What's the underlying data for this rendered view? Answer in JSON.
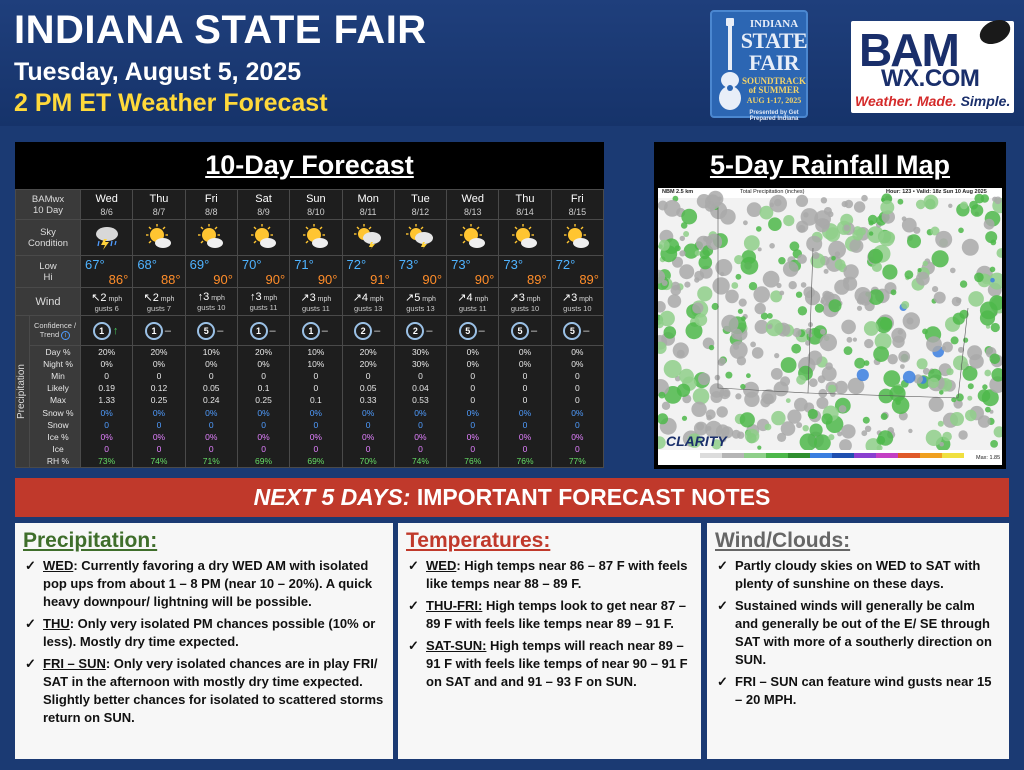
{
  "header": {
    "title": "INDIANA STATE FAIR",
    "date": "Tuesday, August 5, 2025",
    "forecast": "2 PM ET Weather Forecast"
  },
  "fair_logo": {
    "line1": "INDIANA",
    "line2": "STATE FAIR",
    "line3": "SOUNDTRACK of SUMMER",
    "line4": "AUG 1-17, 2025",
    "line5": "Presented by Get Prepared Indiana"
  },
  "bam_logo": {
    "brand": "BAM",
    "domain": "WX.COM",
    "tagline_red": "Weather. Made.",
    "tagline_blue": "Simple."
  },
  "forecast_panel": {
    "title": "10-Day Forecast",
    "corner_line1": "BAMwx",
    "corner_line2": "10 Day",
    "sky_label1": "Sky",
    "sky_label2": "Condition",
    "low_label": "Low",
    "hi_label": "Hi",
    "wind_label": "Wind",
    "conf_label1": "Confidence /",
    "conf_label2": "Trend",
    "precip_side": "Precipitation",
    "precip_rows": [
      "Day %",
      "Night %",
      "Min",
      "Likely",
      "Max",
      "Snow %",
      "Snow",
      "Ice %",
      "Ice",
      "RH %"
    ],
    "days": [
      {
        "name": "Wed",
        "date": "8/6",
        "sky": "storm",
        "low": "67°",
        "hi": "86°",
        "wind_dir": "↖",
        "wind": "2",
        "gusts": "gusts 6",
        "conf": "1",
        "trend": "↑",
        "day": "20%",
        "night": "0%",
        "min": "0",
        "likely": "0.19",
        "max": "1.33",
        "snowp": "0%",
        "snow": "0",
        "icep": "0%",
        "ice": "0",
        "rh": "73%"
      },
      {
        "name": "Thu",
        "date": "8/7",
        "sky": "sun",
        "low": "68°",
        "hi": "88°",
        "wind_dir": "↖",
        "wind": "2",
        "gusts": "gusts 7",
        "conf": "1",
        "trend": "–",
        "day": "20%",
        "night": "0%",
        "min": "0",
        "likely": "0.12",
        "max": "0.25",
        "snowp": "0%",
        "snow": "0",
        "icep": "0%",
        "ice": "0",
        "rh": "74%"
      },
      {
        "name": "Fri",
        "date": "8/8",
        "sky": "sun",
        "low": "69°",
        "hi": "90°",
        "wind_dir": "↑",
        "wind": "3",
        "gusts": "gusts 10",
        "conf": "5",
        "trend": "–",
        "day": "10%",
        "night": "0%",
        "min": "0",
        "likely": "0.05",
        "max": "0.24",
        "snowp": "0%",
        "snow": "0",
        "icep": "0%",
        "ice": "0",
        "rh": "71%"
      },
      {
        "name": "Sat",
        "date": "8/9",
        "sky": "sun",
        "low": "70°",
        "hi": "90°",
        "wind_dir": "↑",
        "wind": "3",
        "gusts": "gusts 11",
        "conf": "1",
        "trend": "–",
        "day": "20%",
        "night": "0%",
        "min": "0",
        "likely": "0.1",
        "max": "0.25",
        "snowp": "0%",
        "snow": "0",
        "icep": "0%",
        "ice": "0",
        "rh": "69%"
      },
      {
        "name": "Sun",
        "date": "8/10",
        "sky": "sun",
        "low": "71°",
        "hi": "90°",
        "wind_dir": "↗",
        "wind": "3",
        "gusts": "gusts 11",
        "conf": "1",
        "trend": "–",
        "day": "10%",
        "night": "10%",
        "min": "0",
        "likely": "0",
        "max": "0.1",
        "snowp": "0%",
        "snow": "0",
        "icep": "0%",
        "ice": "0",
        "rh": "69%"
      },
      {
        "name": "Mon",
        "date": "8/11",
        "sky": "storm_sun",
        "low": "72°",
        "hi": "91°",
        "wind_dir": "↗",
        "wind": "4",
        "gusts": "gusts 13",
        "conf": "2",
        "trend": "–",
        "day": "20%",
        "night": "20%",
        "min": "0",
        "likely": "0.05",
        "max": "0.33",
        "snowp": "0%",
        "snow": "0",
        "icep": "0%",
        "ice": "0",
        "rh": "70%"
      },
      {
        "name": "Tue",
        "date": "8/12",
        "sky": "storm_sun",
        "low": "73°",
        "hi": "90°",
        "wind_dir": "↗",
        "wind": "5",
        "gusts": "gusts 13",
        "conf": "2",
        "trend": "–",
        "day": "30%",
        "night": "30%",
        "min": "0",
        "likely": "0.04",
        "max": "0.53",
        "snowp": "0%",
        "snow": "0",
        "icep": "0%",
        "ice": "0",
        "rh": "74%"
      },
      {
        "name": "Wed",
        "date": "8/13",
        "sky": "sun",
        "low": "73°",
        "hi": "90°",
        "wind_dir": "↗",
        "wind": "4",
        "gusts": "gusts 11",
        "conf": "5",
        "trend": "–",
        "day": "0%",
        "night": "0%",
        "min": "0",
        "likely": "0",
        "max": "0",
        "snowp": "0%",
        "snow": "0",
        "icep": "0%",
        "ice": "0",
        "rh": "76%"
      },
      {
        "name": "Thu",
        "date": "8/14",
        "sky": "sun",
        "low": "73°",
        "hi": "89°",
        "wind_dir": "↗",
        "wind": "3",
        "gusts": "gusts 10",
        "conf": "5",
        "trend": "–",
        "day": "0%",
        "night": "0%",
        "min": "0",
        "likely": "0",
        "max": "0",
        "snowp": "0%",
        "snow": "0",
        "icep": "0%",
        "ice": "0",
        "rh": "76%"
      },
      {
        "name": "Fri",
        "date": "8/15",
        "sky": "sun",
        "low": "72°",
        "hi": "89°",
        "wind_dir": "↗",
        "wind": "3",
        "gusts": "gusts 10",
        "conf": "5",
        "trend": "–",
        "day": "0%",
        "night": "0%",
        "min": "0",
        "likely": "0",
        "max": "0",
        "snowp": "0%",
        "snow": "0",
        "icep": "0%",
        "ice": "0",
        "rh": "77%"
      }
    ]
  },
  "map_panel": {
    "title": "5-Day Rainfall Map",
    "map_header_left": "NBM 2.5 km",
    "map_header_mid": "Total Precipitation (inches)",
    "map_header_right": "Hour: 123 • Valid: 18z Sun 10 Aug 2025",
    "clarity": "CLARITY",
    "max_label": "Max: 1.85"
  },
  "notes": {
    "bar_italic": "NEXT 5 DAYS:",
    "bar_rest": " IMPORTANT FORECAST NOTES",
    "precip": {
      "title": "Precipitation:",
      "items": [
        {
          "lead": "WED",
          "text": ": Currently favoring a dry WED AM with isolated pop ups from about 1 – 8 PM (near 10 – 20%).  A quick heavy downpour/ lightning will be possible."
        },
        {
          "lead": "THU",
          "text": ": Only very isolated PM chances possible (10% or less).  Mostly dry time expected."
        },
        {
          "lead": "FRI – SUN",
          "text": ": Only very isolated chances are in play FRI/ SAT in the afternoon with mostly dry time expected.  Slightly better chances for isolated to scattered storms return on SUN."
        }
      ]
    },
    "temps": {
      "title": "Temperatures:",
      "items": [
        {
          "lead": "WED",
          "text": ": High temps near 86 – 87 F with feels like temps near 88 – 89 F."
        },
        {
          "lead": "THU-FRI:",
          "text": " High temps look to get near 87 – 89 F with feels like temps near 89 – 91 F."
        },
        {
          "lead": "SAT-SUN:",
          "text": " High temps will reach near 89 – 91 F with feels like temps of near 90 – 91 F on SAT and and 91 – 93 F on SUN."
        }
      ]
    },
    "wind": {
      "title": "Wind/Clouds:",
      "items": [
        {
          "lead": "",
          "text": "Partly cloudy skies on WED to SAT with plenty of sunshine on these days."
        },
        {
          "lead": "",
          "text": "Sustained winds will generally be calm and generally be out of the E/ SE through SAT with more of a southerly direction on SUN."
        },
        {
          "lead": "",
          "text": "FRI – SUN can feature wind gusts near 15 – 20 MPH."
        }
      ]
    }
  },
  "colors": {
    "header_bg": "#1b3a73",
    "accent_yellow": "#ffd93a",
    "notes_bar": "#c0392b",
    "precip_title": "#3f6e2b",
    "temps_title": "#c0392b",
    "wind_title": "#666666",
    "low_temp": "#4fb3ff",
    "high_temp": "#ff8d2a"
  }
}
